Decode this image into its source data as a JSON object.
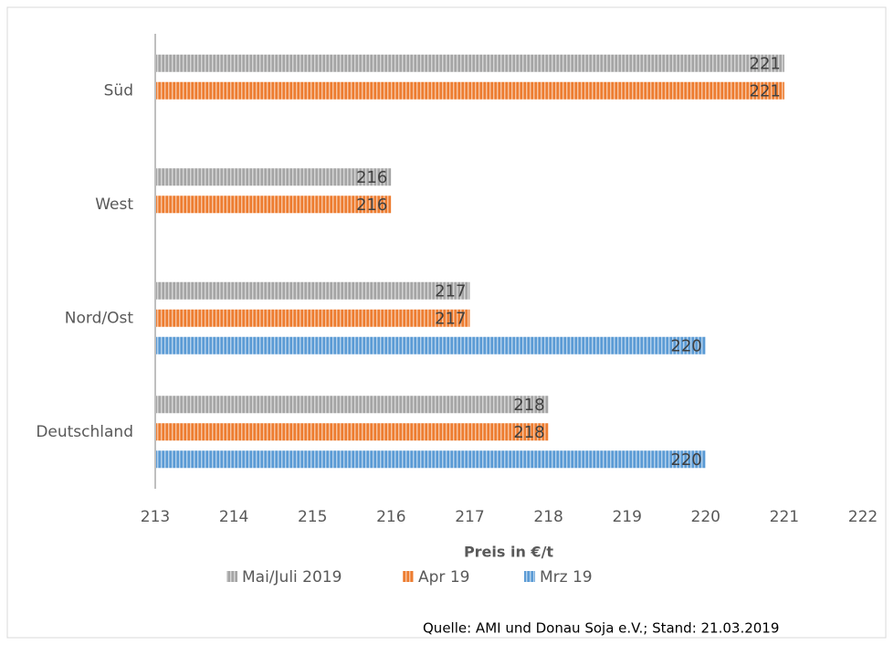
{
  "chart_data": {
    "type": "hbar",
    "categories": [
      "Deutschland",
      "Nord/Ost",
      "West",
      "Süd"
    ],
    "series": [
      {
        "name": "Mai/Juli 2019",
        "color": "#a5a5a5",
        "values": [
          218,
          217,
          216,
          221
        ]
      },
      {
        "name": "Apr 19",
        "color": "#ed7d31",
        "values": [
          218,
          217,
          216,
          221
        ]
      },
      {
        "name": "Mrz 19",
        "color": "#5b9bd5",
        "values": [
          220,
          220,
          null,
          null
        ]
      }
    ],
    "xlim": [
      213,
      222
    ],
    "xticks": [
      213,
      214,
      215,
      216,
      217,
      218,
      219,
      220,
      221,
      222
    ],
    "xlabel": "Preis in €/t",
    "legend": "bottom",
    "source": "Quelle: AMI und Donau Soja e.V.; Stand:  21.03.2019"
  }
}
